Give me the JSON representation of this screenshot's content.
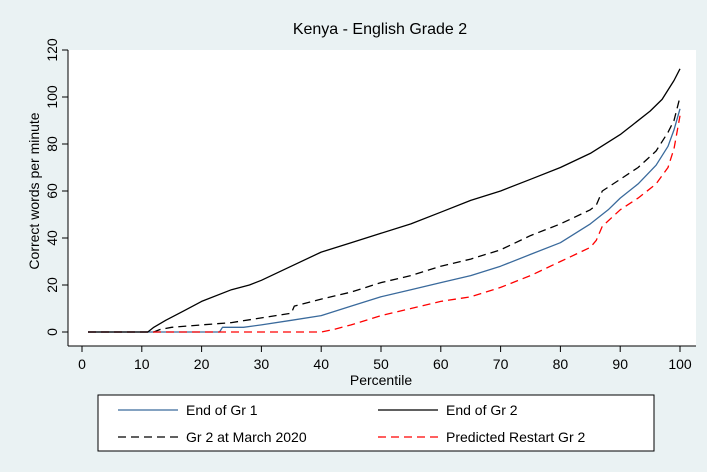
{
  "chart_data": {
    "type": "line",
    "title": "Kenya - English Grade 2",
    "xlabel": "Percentile",
    "ylabel": "Correct words per minute",
    "xlim": [
      0,
      100
    ],
    "ylim": [
      0,
      120
    ],
    "xticks": [
      "0",
      "10",
      "20",
      "30",
      "40",
      "50",
      "60",
      "70",
      "80",
      "90",
      "100"
    ],
    "yticks": [
      "0",
      "20",
      "40",
      "60",
      "80",
      "100",
      "120"
    ],
    "grid": false,
    "legend_position": "bottom",
    "series": [
      {
        "name": "End of Gr 1",
        "color": "#3a6a9c",
        "dash": "solid",
        "points": [
          [
            1,
            0
          ],
          [
            22,
            0
          ],
          [
            23,
            0
          ],
          [
            23.5,
            2
          ],
          [
            27,
            2
          ],
          [
            30,
            3
          ],
          [
            35,
            5
          ],
          [
            40,
            7
          ],
          [
            45,
            11
          ],
          [
            50,
            15
          ],
          [
            55,
            18
          ],
          [
            60,
            21
          ],
          [
            65,
            24
          ],
          [
            70,
            28
          ],
          [
            75,
            33
          ],
          [
            80,
            38
          ],
          [
            85,
            46
          ],
          [
            88,
            52
          ],
          [
            90,
            57
          ],
          [
            93,
            63
          ],
          [
            96,
            71
          ],
          [
            98,
            79
          ],
          [
            99,
            86
          ],
          [
            100,
            95
          ]
        ]
      },
      {
        "name": "End of Gr 2",
        "color": "#000000",
        "dash": "solid",
        "points": [
          [
            1,
            0
          ],
          [
            11,
            0
          ],
          [
            12,
            2
          ],
          [
            14,
            5
          ],
          [
            17,
            9
          ],
          [
            20,
            13
          ],
          [
            25,
            18
          ],
          [
            28,
            20
          ],
          [
            30,
            22
          ],
          [
            35,
            28
          ],
          [
            40,
            34
          ],
          [
            45,
            38
          ],
          [
            50,
            42
          ],
          [
            55,
            46
          ],
          [
            60,
            51
          ],
          [
            65,
            56
          ],
          [
            70,
            60
          ],
          [
            75,
            65
          ],
          [
            80,
            70
          ],
          [
            85,
            76
          ],
          [
            90,
            84
          ],
          [
            92,
            88
          ],
          [
            95,
            94
          ],
          [
            97,
            99
          ],
          [
            98,
            103
          ],
          [
            99,
            107
          ],
          [
            100,
            112
          ]
        ]
      },
      {
        "name": "Gr 2 at March 2020",
        "color": "#000000",
        "dash": "dashed",
        "points": [
          [
            1,
            0
          ],
          [
            12,
            0
          ],
          [
            13,
            1
          ],
          [
            15,
            2
          ],
          [
            20,
            3
          ],
          [
            25,
            4
          ],
          [
            30,
            6
          ],
          [
            35,
            8
          ],
          [
            35.5,
            11
          ],
          [
            40,
            14
          ],
          [
            45,
            17
          ],
          [
            50,
            21
          ],
          [
            55,
            24
          ],
          [
            60,
            28
          ],
          [
            65,
            31
          ],
          [
            70,
            35
          ],
          [
            75,
            41
          ],
          [
            80,
            46
          ],
          [
            85,
            52
          ],
          [
            86,
            54
          ],
          [
            87,
            60
          ],
          [
            90,
            65
          ],
          [
            93,
            70
          ],
          [
            96,
            77
          ],
          [
            98,
            85
          ],
          [
            99,
            90
          ],
          [
            100,
            100
          ]
        ]
      },
      {
        "name": "Predicted Restart Gr 2",
        "color": "#ff0000",
        "dash": "dashed",
        "points": [
          [
            1,
            0
          ],
          [
            40,
            0
          ],
          [
            42,
            1
          ],
          [
            45,
            3
          ],
          [
            50,
            7
          ],
          [
            55,
            10
          ],
          [
            60,
            13
          ],
          [
            65,
            15
          ],
          [
            70,
            19
          ],
          [
            75,
            24
          ],
          [
            80,
            30
          ],
          [
            85,
            36
          ],
          [
            86,
            39
          ],
          [
            87,
            45
          ],
          [
            90,
            52
          ],
          [
            93,
            57
          ],
          [
            96,
            63
          ],
          [
            98,
            70
          ],
          [
            99,
            78
          ],
          [
            100,
            92
          ]
        ]
      }
    ]
  },
  "legend": [
    {
      "label": "End of Gr 1",
      "color": "#3a6a9c",
      "dash": "solid"
    },
    {
      "label": "End of Gr 2",
      "color": "#000000",
      "dash": "solid"
    },
    {
      "label": "Gr 2 at March 2020",
      "color": "#000000",
      "dash": "dashed"
    },
    {
      "label": "Predicted Restart Gr 2",
      "color": "#ff0000",
      "dash": "dashed"
    }
  ]
}
